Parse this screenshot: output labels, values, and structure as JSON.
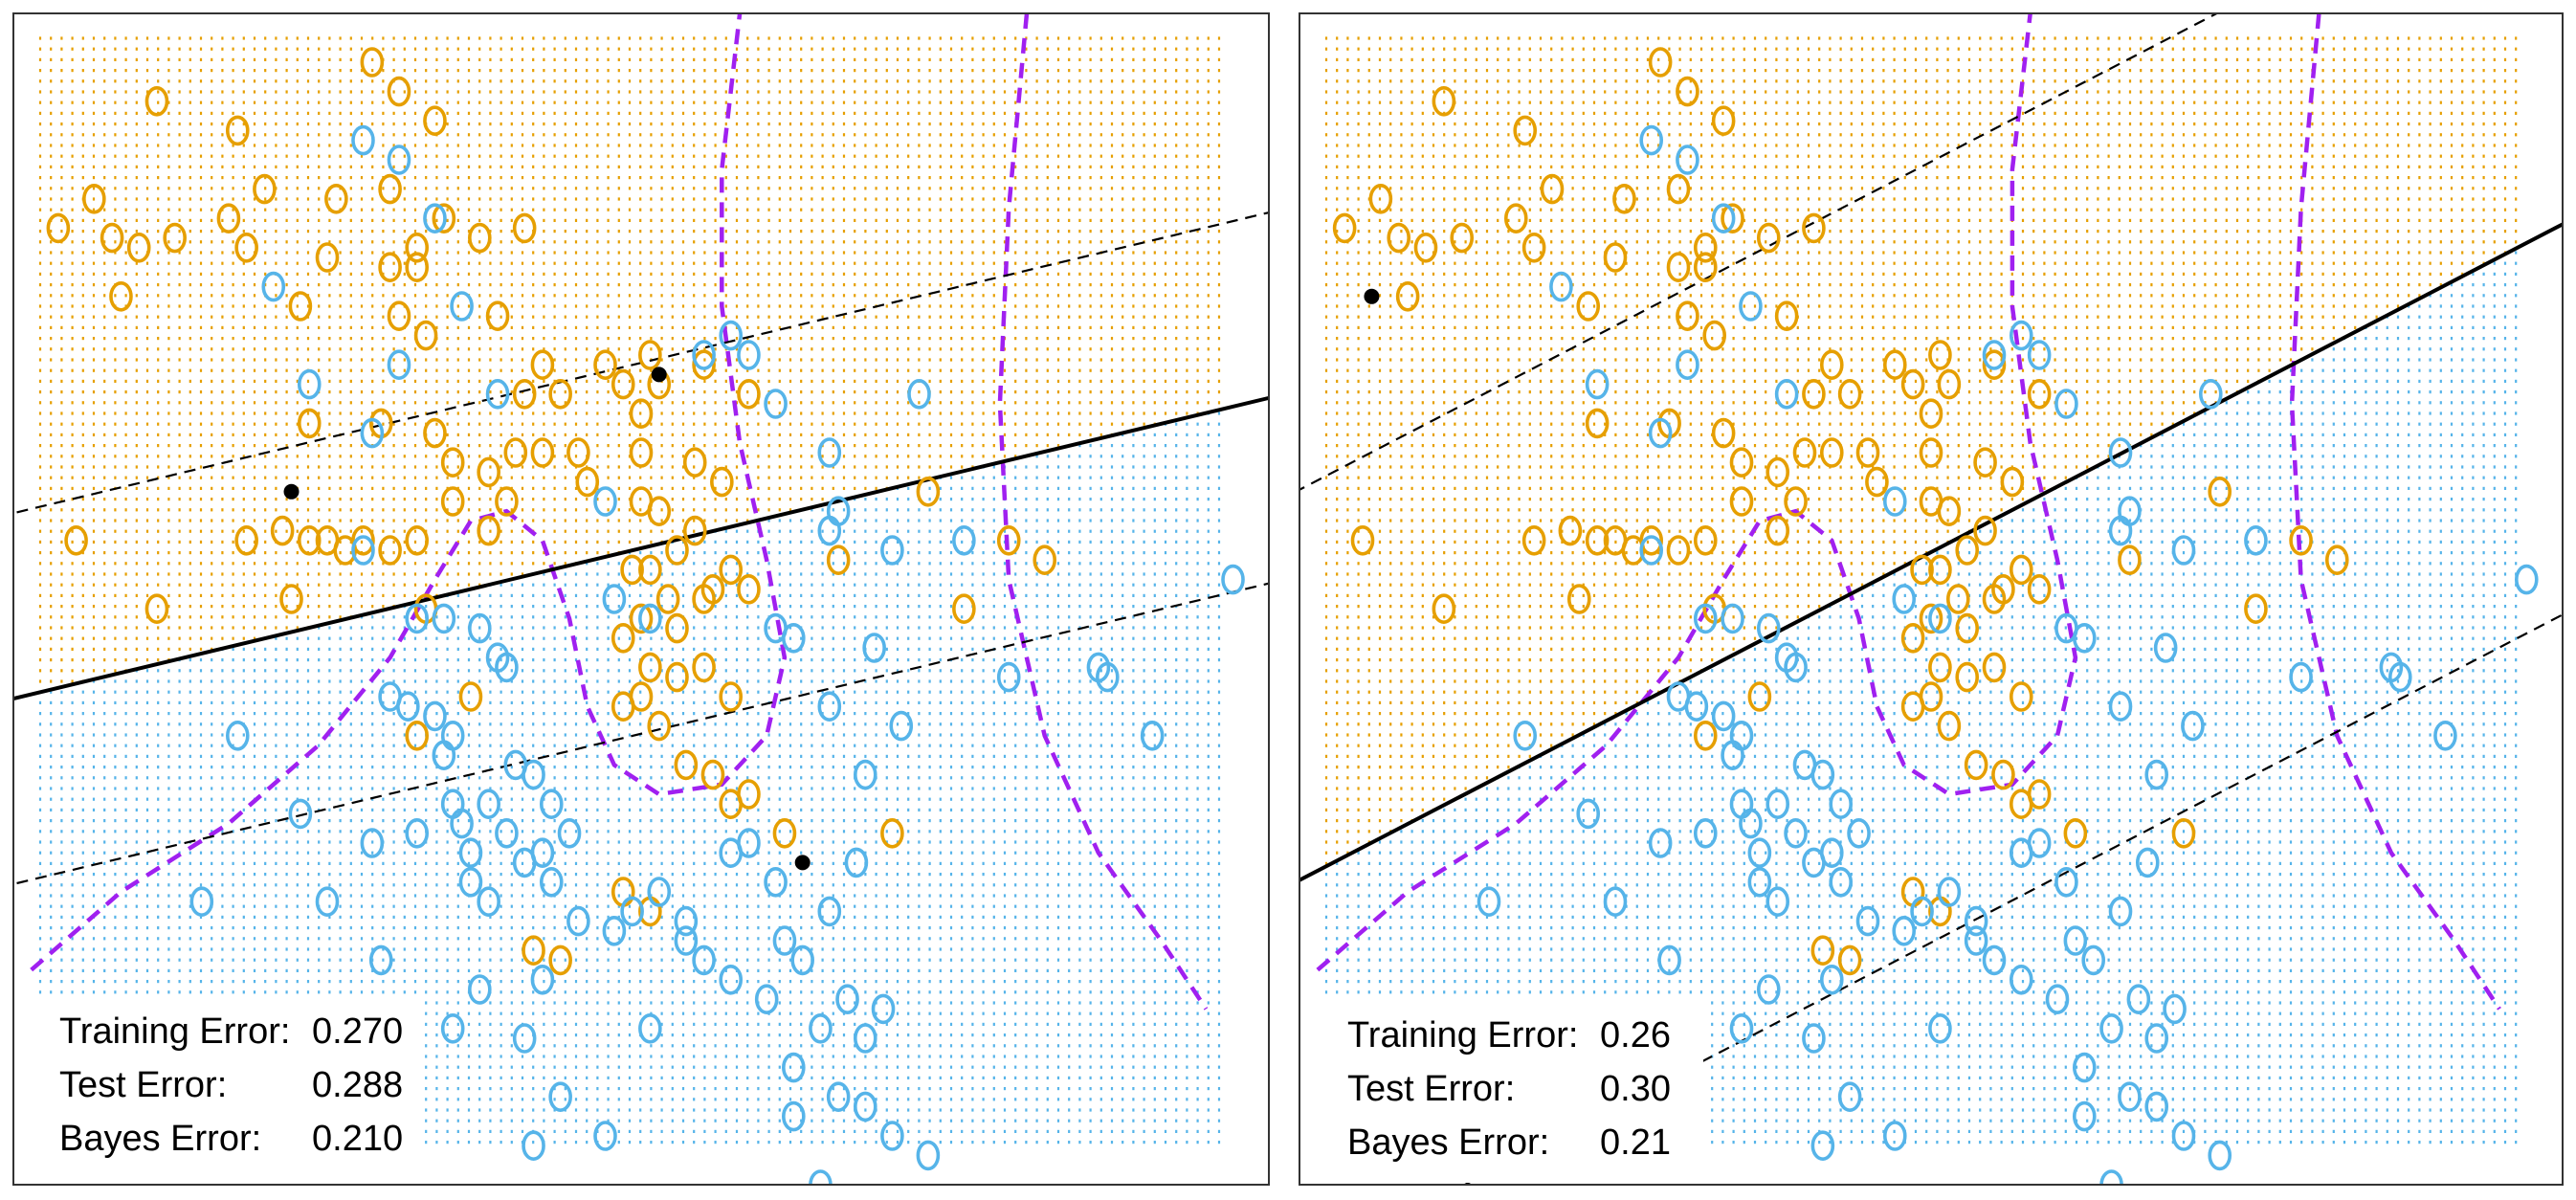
{
  "chart_data": [
    {
      "type": "scatter",
      "xlim": [
        -3,
        4
      ],
      "ylim": [
        -3,
        3
      ],
      "grid": false,
      "colors": {
        "orange": "#e69f00",
        "blue": "#56b4e9",
        "bayes": "#a020f0",
        "line": "#000000"
      },
      "classifier": {
        "slope": 0.22,
        "intercept": 0.15
      },
      "margin_offset": 0.95,
      "support_vectors": [
        [
          -1.45,
          0.55
        ],
        [
          0.6,
          1.15
        ],
        [
          1.4,
          -1.35
        ]
      ],
      "stats": [
        {
          "label": "Training Error:",
          "value": "0.270"
        },
        {
          "label": "Test Error:",
          "value": "0.288"
        },
        {
          "label": "Bayes Error:",
          "value": "0.210"
        }
      ]
    },
    {
      "type": "scatter",
      "xlim": [
        -3,
        4
      ],
      "ylim": [
        -3,
        3
      ],
      "grid": false,
      "colors": {
        "orange": "#e69f00",
        "blue": "#56b4e9",
        "bayes": "#a020f0",
        "line": "#000000"
      },
      "classifier": {
        "slope": 0.48,
        "intercept": 0.0
      },
      "margin_offset": 2.0,
      "support_vectors": [
        [
          -2.6,
          1.55
        ]
      ],
      "stats": [
        {
          "label": "Training Error:",
          "value": "0.26"
        },
        {
          "label": "Test Error:",
          "value": "0.30"
        },
        {
          "label": "Bayes Error:",
          "value": "0.21"
        }
      ]
    }
  ],
  "points": {
    "orange": [
      [
        -2.75,
        1.9
      ],
      [
        -2.2,
        2.55
      ],
      [
        -1.75,
        2.4
      ],
      [
        -1.0,
        2.75
      ],
      [
        -0.85,
        2.6
      ],
      [
        -0.65,
        2.45
      ],
      [
        -1.6,
        2.1
      ],
      [
        -1.2,
        2.05
      ],
      [
        -0.9,
        2.1
      ],
      [
        -0.75,
        1.8
      ],
      [
        -0.6,
        1.95
      ],
      [
        -0.4,
        1.85
      ],
      [
        -2.55,
        2.05
      ],
      [
        -2.45,
        1.85
      ],
      [
        -2.3,
        1.8
      ],
      [
        -2.1,
        1.85
      ],
      [
        -1.8,
        1.95
      ],
      [
        -1.7,
        1.8
      ],
      [
        -1.25,
        1.75
      ],
      [
        -0.9,
        1.7
      ],
      [
        -0.75,
        1.7
      ],
      [
        -0.15,
        1.9
      ],
      [
        -0.85,
        1.45
      ],
      [
        -2.4,
        1.55
      ],
      [
        -1.4,
        1.5
      ],
      [
        -0.3,
        1.45
      ],
      [
        -0.7,
        1.35
      ],
      [
        -0.05,
        1.2
      ],
      [
        -0.15,
        1.05
      ],
      [
        0.05,
        1.05
      ],
      [
        0.3,
        1.2
      ],
      [
        0.4,
        1.1
      ],
      [
        0.5,
        0.95
      ],
      [
        0.6,
        1.1
      ],
      [
        0.85,
        1.2
      ],
      [
        1.1,
        1.05
      ],
      [
        -1.35,
        0.9
      ],
      [
        -0.95,
        0.9
      ],
      [
        -0.65,
        0.85
      ],
      [
        -0.55,
        0.7
      ],
      [
        -0.35,
        0.65
      ],
      [
        -0.2,
        0.75
      ],
      [
        -0.05,
        0.75
      ],
      [
        0.15,
        0.75
      ],
      [
        0.5,
        0.75
      ],
      [
        0.8,
        0.7
      ],
      [
        0.95,
        0.6
      ],
      [
        -1.7,
        0.3
      ],
      [
        -1.5,
        0.35
      ],
      [
        -1.35,
        0.3
      ],
      [
        -1.25,
        0.3
      ],
      [
        -1.15,
        0.25
      ],
      [
        -1.05,
        0.3
      ],
      [
        -0.9,
        0.25
      ],
      [
        -0.75,
        0.3
      ],
      [
        -0.35,
        0.35
      ],
      [
        -0.55,
        0.5
      ],
      [
        -0.25,
        0.5
      ],
      [
        0.2,
        0.6
      ],
      [
        0.5,
        0.5
      ],
      [
        0.6,
        0.45
      ],
      [
        0.7,
        0.25
      ],
      [
        0.8,
        0.35
      ],
      [
        0.45,
        0.15
      ],
      [
        0.55,
        0.15
      ],
      [
        0.65,
        0.0
      ],
      [
        0.85,
        0.0
      ],
      [
        0.9,
        0.05
      ],
      [
        0.4,
        -0.2
      ],
      [
        0.5,
        -0.1
      ],
      [
        0.7,
        -0.15
      ],
      [
        0.55,
        -0.35
      ],
      [
        0.7,
        -0.4
      ],
      [
        0.85,
        -0.35
      ],
      [
        1.0,
        -0.5
      ],
      [
        0.4,
        -0.55
      ],
      [
        0.5,
        -0.5
      ],
      [
        0.6,
        -0.65
      ],
      [
        0.75,
        -0.85
      ],
      [
        0.9,
        -0.9
      ],
      [
        1.0,
        -1.05
      ],
      [
        1.1,
        -1.0
      ],
      [
        1.3,
        -1.2
      ],
      [
        1.6,
        0.2
      ],
      [
        2.1,
        0.55
      ],
      [
        2.3,
        -0.05
      ],
      [
        2.55,
        0.3
      ],
      [
        2.75,
        0.2
      ],
      [
        1.9,
        -1.2
      ],
      [
        0.4,
        -1.5
      ],
      [
        0.05,
        -1.85
      ],
      [
        -0.1,
        -1.8
      ],
      [
        0.55,
        -1.6
      ],
      [
        -0.7,
        -0.05
      ],
      [
        -0.45,
        -0.5
      ],
      [
        -0.75,
        -0.7
      ],
      [
        -2.65,
        0.3
      ],
      [
        -2.2,
        -0.05
      ],
      [
        -1.45,
        0.0
      ],
      [
        1.0,
        0.15
      ],
      [
        1.1,
        0.05
      ],
      [
        0.55,
        1.25
      ]
    ],
    "blue": [
      [
        -1.05,
        2.35
      ],
      [
        -0.85,
        2.25
      ],
      [
        -0.65,
        1.95
      ],
      [
        -1.55,
        1.6
      ],
      [
        -0.5,
        1.5
      ],
      [
        -1.35,
        1.1
      ],
      [
        -1.0,
        0.85
      ],
      [
        -0.85,
        1.2
      ],
      [
        -0.3,
        1.05
      ],
      [
        1.0,
        1.35
      ],
      [
        1.1,
        1.25
      ],
      [
        1.25,
        1.0
      ],
      [
        0.85,
        1.25
      ],
      [
        2.05,
        1.05
      ],
      [
        0.3,
        0.5
      ],
      [
        1.55,
        0.35
      ],
      [
        1.6,
        0.45
      ],
      [
        1.9,
        0.25
      ],
      [
        1.55,
        0.75
      ],
      [
        2.3,
        0.3
      ],
      [
        2.55,
        -0.4
      ],
      [
        3.05,
        -0.35
      ],
      [
        3.1,
        -0.4
      ],
      [
        3.35,
        -0.7
      ],
      [
        3.8,
        0.1
      ],
      [
        -1.05,
        0.25
      ],
      [
        -0.75,
        -0.1
      ],
      [
        -0.6,
        -0.1
      ],
      [
        -0.25,
        -0.35
      ],
      [
        -0.4,
        -0.15
      ],
      [
        -0.3,
        -0.3
      ],
      [
        0.35,
        0.0
      ],
      [
        0.55,
        -0.1
      ],
      [
        1.25,
        -0.15
      ],
      [
        1.35,
        -0.2
      ],
      [
        1.8,
        -0.25
      ],
      [
        1.95,
        -0.65
      ],
      [
        1.75,
        -0.9
      ],
      [
        1.55,
        -0.55
      ],
      [
        -0.8,
        -0.55
      ],
      [
        -0.9,
        -0.5
      ],
      [
        -0.65,
        -0.6
      ],
      [
        -0.55,
        -0.7
      ],
      [
        -0.6,
        -0.8
      ],
      [
        -0.55,
        -1.05
      ],
      [
        -0.5,
        -1.15
      ],
      [
        -0.45,
        -1.3
      ],
      [
        -0.2,
        -0.85
      ],
      [
        -0.1,
        -0.9
      ],
      [
        0.0,
        -1.05
      ],
      [
        -0.35,
        -1.05
      ],
      [
        -0.25,
        -1.2
      ],
      [
        -0.05,
        -1.3
      ],
      [
        -0.45,
        -1.45
      ],
      [
        -0.35,
        -1.55
      ],
      [
        -0.15,
        -1.35
      ],
      [
        0.0,
        -1.45
      ],
      [
        0.1,
        -1.2
      ],
      [
        0.15,
        -1.65
      ],
      [
        0.35,
        -1.7
      ],
      [
        0.45,
        -1.6
      ],
      [
        0.6,
        -1.5
      ],
      [
        0.75,
        -1.75
      ],
      [
        0.85,
        -1.85
      ],
      [
        1.0,
        -1.3
      ],
      [
        1.1,
        -1.25
      ],
      [
        1.25,
        -1.45
      ],
      [
        1.3,
        -1.75
      ],
      [
        1.4,
        -1.85
      ],
      [
        1.55,
        -1.6
      ],
      [
        1.7,
        -1.35
      ],
      [
        -1.75,
        -0.7
      ],
      [
        -1.4,
        -1.1
      ],
      [
        -1.0,
        -1.25
      ],
      [
        -0.75,
        -1.2
      ],
      [
        -0.4,
        -2.0
      ],
      [
        -0.05,
        -1.95
      ],
      [
        -0.15,
        -2.25
      ],
      [
        -0.55,
        -2.2
      ],
      [
        0.55,
        -2.2
      ],
      [
        -1.95,
        -1.55
      ],
      [
        -1.25,
        -1.55
      ],
      [
        -0.95,
        -1.85
      ],
      [
        0.75,
        -1.65
      ],
      [
        1.0,
        -1.95
      ],
      [
        1.2,
        -2.05
      ],
      [
        1.5,
        -2.2
      ],
      [
        1.75,
        -2.25
      ],
      [
        1.85,
        -2.1
      ],
      [
        1.35,
        -2.4
      ],
      [
        1.6,
        -2.55
      ],
      [
        1.75,
        -2.6
      ],
      [
        1.9,
        -2.75
      ],
      [
        0.3,
        -2.75
      ],
      [
        0.05,
        -2.55
      ],
      [
        1.65,
        -2.05
      ],
      [
        -0.1,
        -2.8
      ],
      [
        1.35,
        -2.65
      ],
      [
        2.1,
        -2.85
      ],
      [
        1.5,
        -3.0
      ]
    ]
  }
}
